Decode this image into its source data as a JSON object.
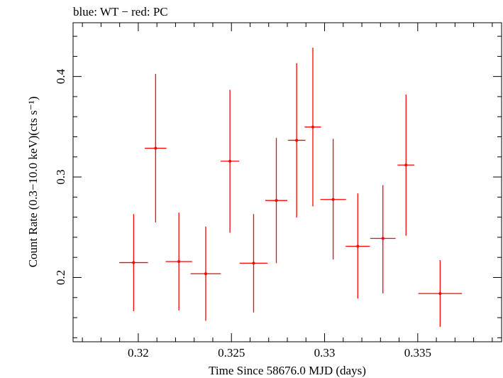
{
  "chart_data": {
    "type": "scatter",
    "title": "blue: WT − red: PC",
    "xlabel": "Time Since 58676.0 MJD (days)",
    "ylabel": "Count Rate (0.3−10.0 keV)(cts s⁻¹)",
    "xlim": [
      0.3165,
      0.3395
    ],
    "ylim": [
      0.136,
      0.4535
    ],
    "x_ticks": [
      {
        "value": 0.32,
        "label": "0.32"
      },
      {
        "value": 0.325,
        "label": "0.325"
      },
      {
        "value": 0.33,
        "label": "0.33"
      },
      {
        "value": 0.335,
        "label": "0.335"
      }
    ],
    "y_ticks": [
      {
        "value": 0.2,
        "label": "0.2"
      },
      {
        "value": 0.3,
        "label": "0.3"
      },
      {
        "value": 0.4,
        "label": "0.4"
      }
    ],
    "grid": false,
    "series": [
      {
        "name": "PC",
        "color": "#ff0000",
        "points": [
          {
            "x": 0.31975,
            "x_lo": 0.31898,
            "x_hi": 0.32052,
            "y": 0.2148,
            "y_lo": 0.1665,
            "y_hi": 0.2631
          },
          {
            "x": 0.32093,
            "x_lo": 0.32035,
            "x_hi": 0.32151,
            "y": 0.3286,
            "y_lo": 0.2548,
            "y_hi": 0.4025
          },
          {
            "x": 0.32218,
            "x_lo": 0.32147,
            "x_hi": 0.32289,
            "y": 0.2158,
            "y_lo": 0.1672,
            "y_hi": 0.2645
          },
          {
            "x": 0.32362,
            "x_lo": 0.32281,
            "x_hi": 0.32443,
            "y": 0.2037,
            "y_lo": 0.1569,
            "y_hi": 0.2506
          },
          {
            "x": 0.32492,
            "x_lo": 0.32442,
            "x_hi": 0.32542,
            "y": 0.3157,
            "y_lo": 0.2445,
            "y_hi": 0.3868
          },
          {
            "x": 0.32619,
            "x_lo": 0.32544,
            "x_hi": 0.32694,
            "y": 0.2142,
            "y_lo": 0.1652,
            "y_hi": 0.2631
          },
          {
            "x": 0.32741,
            "x_lo": 0.32682,
            "x_hi": 0.328,
            "y": 0.2766,
            "y_lo": 0.2142,
            "y_hi": 0.3389
          },
          {
            "x": 0.3285,
            "x_lo": 0.32803,
            "x_hi": 0.32897,
            "y": 0.3365,
            "y_lo": 0.2597,
            "y_hi": 0.4133
          },
          {
            "x": 0.32937,
            "x_lo": 0.32893,
            "x_hi": 0.32981,
            "y": 0.3497,
            "y_lo": 0.2708,
            "y_hi": 0.4287
          },
          {
            "x": 0.33046,
            "x_lo": 0.32977,
            "x_hi": 0.33115,
            "y": 0.2776,
            "y_lo": 0.2179,
            "y_hi": 0.338
          },
          {
            "x": 0.33178,
            "x_lo": 0.33113,
            "x_hi": 0.33243,
            "y": 0.231,
            "y_lo": 0.179,
            "y_hi": 0.2836
          },
          {
            "x": 0.33313,
            "x_lo": 0.33245,
            "x_hi": 0.33381,
            "y": 0.2389,
            "y_lo": 0.1842,
            "y_hi": 0.2918
          },
          {
            "x": 0.33437,
            "x_lo": 0.33392,
            "x_hi": 0.33482,
            "y": 0.3119,
            "y_lo": 0.2415,
            "y_hi": 0.382
          },
          {
            "x": 0.3362,
            "x_lo": 0.33503,
            "x_hi": 0.33737,
            "y": 0.184,
            "y_lo": 0.1509,
            "y_hi": 0.2173
          }
        ]
      }
    ]
  }
}
